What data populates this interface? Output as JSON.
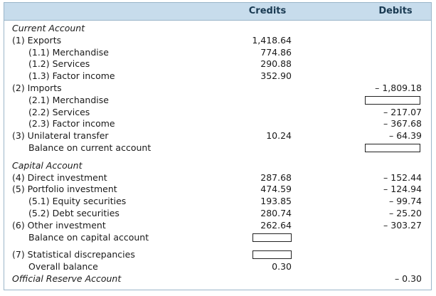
{
  "header": {
    "credits": "Credits",
    "debits": "Debits"
  },
  "rows": [
    {
      "label": "Current Account",
      "italic": true,
      "indent": 0,
      "credit": "",
      "debit": ""
    },
    {
      "label": "(1) Exports",
      "indent": 0,
      "credit": "1,418.64",
      "debit": ""
    },
    {
      "label": "(1.1) Merchandise",
      "indent": 1,
      "credit": "774.86",
      "debit": ""
    },
    {
      "label": "(1.2) Services",
      "indent": 1,
      "credit": "290.88",
      "debit": ""
    },
    {
      "label": "(1.3) Factor income",
      "indent": 1,
      "credit": "352.90",
      "debit": ""
    },
    {
      "label": "(2) Imports",
      "indent": 0,
      "credit": "",
      "debit": "– 1,809.18"
    },
    {
      "label": "(2.1) Merchandise",
      "indent": 1,
      "credit": "",
      "debit": "",
      "debit_box": true
    },
    {
      "label": "(2.2) Services",
      "indent": 1,
      "credit": "",
      "debit": "– 217.07"
    },
    {
      "label": "(2.3) Factor income",
      "indent": 1,
      "credit": "",
      "debit": "– 367.68"
    },
    {
      "label": "(3) Unilateral transfer",
      "indent": 0,
      "credit": "10.24",
      "debit": "– 64.39"
    },
    {
      "label": "Balance on current account",
      "indent": 1,
      "credit": "",
      "debit": "",
      "debit_box": true
    },
    {
      "label": "Capital Account",
      "italic": true,
      "indent": 0,
      "credit": "",
      "debit": "",
      "gap_before": true
    },
    {
      "label": "(4) Direct investment",
      "indent": 0,
      "credit": "287.68",
      "debit": "– 152.44"
    },
    {
      "label": "(5) Portfolio investment",
      "indent": 0,
      "credit": "474.59",
      "debit": "– 124.94"
    },
    {
      "label": "(5.1) Equity securities",
      "indent": 1,
      "credit": "193.85",
      "debit": "– 99.74"
    },
    {
      "label": "(5.2) Debt securities",
      "indent": 1,
      "credit": "280.74",
      "debit": "– 25.20"
    },
    {
      "label": "(6) Other investment",
      "indent": 0,
      "credit": "262.64",
      "debit": "– 303.27"
    },
    {
      "label": "Balance on capital account",
      "indent": 1,
      "credit": "",
      "debit": "",
      "credit_box": true
    },
    {
      "label": "(7) Statistical discrepancies",
      "indent": 0,
      "credit": "",
      "debit": "",
      "credit_box": true,
      "gap_before": true
    },
    {
      "label": "Overall balance",
      "indent": 1,
      "credit": "0.30",
      "debit": ""
    },
    {
      "label": "Official Reserve Account",
      "italic": true,
      "indent": 0,
      "credit": "",
      "debit": "– 0.30"
    }
  ]
}
